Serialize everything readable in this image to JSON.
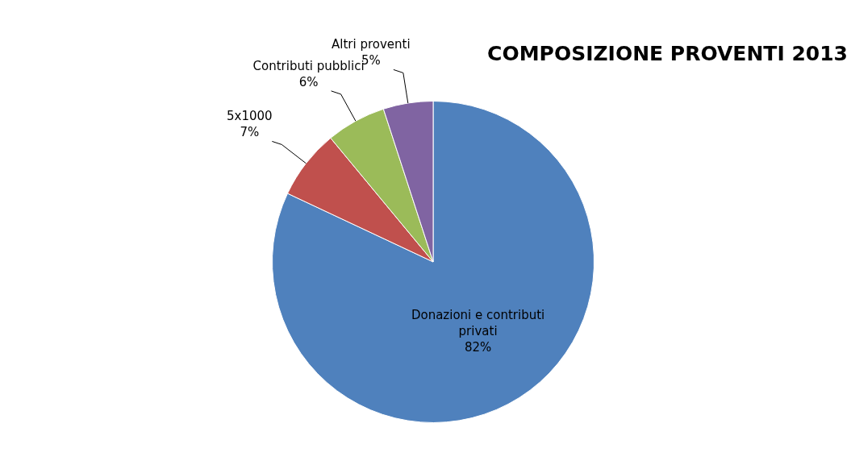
{
  "chart_data": {
    "type": "pie",
    "title": "COMPOSIZIONE PROVENTI 2013",
    "categories": [
      "Donazioni e contributi privati",
      "5x1000",
      "Contributi pubblici",
      "Altri proventi"
    ],
    "values": [
      82,
      7,
      6,
      5
    ],
    "value_labels": [
      "82%",
      "7%",
      "6%",
      "5%"
    ],
    "colors": [
      "#4f81bd",
      "#c0504d",
      "#9bbb59",
      "#8064a2"
    ],
    "legend": false
  }
}
